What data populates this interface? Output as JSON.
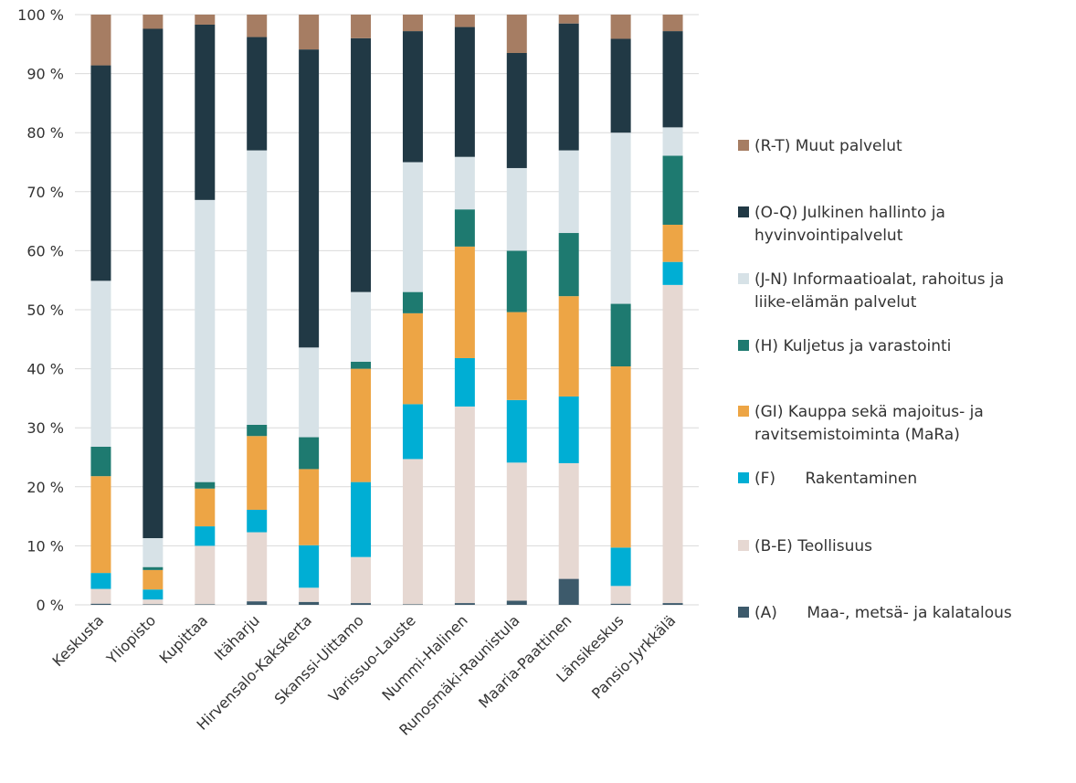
{
  "chart_data": {
    "type": "bar",
    "stacked": "percent",
    "title": "",
    "xlabel": "",
    "ylabel": "",
    "ylim": [
      0,
      100
    ],
    "ytick_labels": [
      "0 %",
      "10 %",
      "20 %",
      "30 %",
      "40 %",
      "50 %",
      "60 %",
      "70 %",
      "80 %",
      "90 %",
      "100 %"
    ],
    "grid": "horizontal",
    "legend_position": "right",
    "categories": [
      "Keskusta",
      "Yliopisto",
      "Kupittaa",
      "Itäharju",
      "Hirvensalo-Kakskerta",
      "Skanssi-Uittamo",
      "Varissuo-Lauste",
      "Nummi-Halinen",
      "Runosmäki-Raunistula",
      "Maaria-Paattinen",
      "Länsikeskus",
      "Pansio-Jyrkkälä"
    ],
    "series": [
      {
        "name": "(A)      Maa-, metsä- ja kalatalous",
        "color": "#3d5a6b",
        "values": [
          0.2,
          0.1,
          0.1,
          0.6,
          0.5,
          0.3,
          0.1,
          0.3,
          0.7,
          4.4,
          0.2,
          0.3
        ]
      },
      {
        "name": "(B-E) Teollisuus",
        "color": "#e6d8d2",
        "values": [
          2.5,
          0.8,
          9.9,
          11.7,
          2.4,
          7.8,
          24.6,
          33.3,
          23.4,
          19.6,
          3.0,
          53.9
        ]
      },
      {
        "name": "(F)      Rakentaminen",
        "color": "#00aed4",
        "values": [
          2.7,
          1.7,
          3.3,
          3.8,
          7.2,
          12.7,
          9.3,
          8.2,
          10.6,
          11.3,
          6.5,
          3.9
        ]
      },
      {
        "name": "(GI) Kauppa sekä majoitus- ja ravitsemistoiminta (MaRa)",
        "color": "#eda545",
        "values": [
          16.4,
          3.3,
          6.4,
          12.5,
          12.9,
          19.2,
          15.4,
          18.9,
          14.9,
          17.0,
          30.7,
          6.3
        ]
      },
      {
        "name": "(H) Kuljetus ja varastointi",
        "color": "#1e7a70",
        "values": [
          5.0,
          0.5,
          1.1,
          1.9,
          5.4,
          1.2,
          3.6,
          6.3,
          10.4,
          10.7,
          10.6,
          11.7
        ]
      },
      {
        "name": "(J-N) Informaatioalat, rahoitus ja liike-elämän palvelut",
        "color": "#d7e2e7",
        "values": [
          28.1,
          4.9,
          47.8,
          46.5,
          15.2,
          11.8,
          22.0,
          8.9,
          14.0,
          14.0,
          29.0,
          4.8
        ]
      },
      {
        "name": "(O-Q) Julkinen hallinto ja hyvinvointipalvelut",
        "color": "#213945",
        "values": [
          36.5,
          86.3,
          29.7,
          19.2,
          50.5,
          43.0,
          22.2,
          22.0,
          19.5,
          21.5,
          15.9,
          16.3
        ]
      },
      {
        "name": "(R-T) Muut palvelut",
        "color": "#a67d63",
        "values": [
          8.6,
          2.4,
          1.7,
          3.8,
          5.9,
          4.0,
          2.8,
          2.1,
          6.5,
          1.5,
          4.1,
          2.8
        ]
      }
    ],
    "legend_order": [
      7,
      6,
      5,
      4,
      3,
      2,
      1,
      0
    ],
    "legend_lines": [
      [
        "(R-T) Muut palvelut"
      ],
      [
        "(O-Q) Julkinen hallinto ja",
        "hyvinvointipalvelut"
      ],
      [
        "(J-N) Informaatioalat, rahoitus ja",
        "liike-elämän palvelut"
      ],
      [
        "(H) Kuljetus ja varastointi"
      ],
      [
        "(GI) Kauppa sekä majoitus- ja",
        "ravitsemistoiminta (MaRa)"
      ],
      [
        "(F)      Rakentaminen"
      ],
      [
        "(B-E) Teollisuus"
      ],
      [
        "(A)      Maa-, metsä- ja kalatalous"
      ]
    ]
  }
}
